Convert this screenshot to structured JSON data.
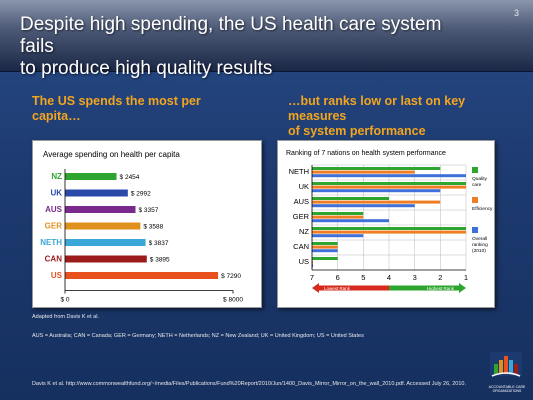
{
  "slide": {
    "title_line1": "Despite high spending, the US health care system fails",
    "title_line2": "to produce high quality results",
    "page_number": "3",
    "subtitle_left": "The US spends the most per capita…",
    "subtitle_right_line1": "…but ranks low or last on key measures",
    "subtitle_right_line2": "of system performance",
    "note": "Adapted from Davis K et al.",
    "abbreviations": "AUS = Australia; CAN = Canada; GER = Germany; NETH = Netherlands; NZ = New Zealand; UK = United Kingdom; US = United States",
    "source": "Davis K et al. http://www.commonwealthfund.org/~/media/Files/Publications/Fund%20Report/2010/Jun/1400_Davis_Mirror_Mirror_on_the_wall_2010.pdf. Accessed July 26, 2010.",
    "logo_text": "ACCOUNTABLE CARE ORGANIZATIONS",
    "header_colors": {
      "background": "#1d3a70",
      "accent": "#f3a51d"
    }
  },
  "chart_data": [
    {
      "type": "bar",
      "orientation": "horizontal",
      "title": "Average spending on health per capita",
      "categories": [
        "NZ",
        "UK",
        "AUS",
        "GER",
        "NETH",
        "CAN",
        "US"
      ],
      "values": [
        2454,
        2992,
        3357,
        3588,
        3837,
        3895,
        7290
      ],
      "value_labels": [
        "$ 2454",
        "$ 2992",
        "$ 3357",
        "$ 3588",
        "$ 3837",
        "$ 3895",
        "$ 7290"
      ],
      "colors": [
        "#2ea52e",
        "#2a49a8",
        "#7a2a8c",
        "#e0901c",
        "#3aa7d8",
        "#9c1c1c",
        "#e8511e"
      ],
      "xlim": [
        0,
        8000
      ],
      "xtick_labels": [
        "$ 0",
        "$ 8000"
      ],
      "grid": false
    },
    {
      "type": "bar",
      "orientation": "horizontal",
      "title": "Ranking of 7 nations on health system performance",
      "categories": [
        "NETH",
        "UK",
        "AUS",
        "GER",
        "NZ",
        "CAN",
        "US"
      ],
      "series": [
        {
          "name": "Quality care",
          "color": "#2ea52e",
          "values": [
            2,
            1,
            4,
            5,
            1,
            6,
            6
          ]
        },
        {
          "name": "Efficiency",
          "color": "#ef7d22",
          "values": [
            3,
            1,
            2,
            5,
            1,
            6,
            7
          ]
        },
        {
          "name": "Overall ranking (2010)",
          "color": "#3f6fd8",
          "values": [
            1,
            2,
            3,
            4,
            5,
            6,
            7
          ]
        }
      ],
      "xlim": [
        7,
        1
      ],
      "xtick_labels": [
        "7",
        "6",
        "5",
        "4",
        "3",
        "2",
        "1"
      ],
      "arrow_left_label": "Lowest Rank",
      "arrow_right_label": "Highest Rank",
      "legend_position": "right",
      "grid": true
    }
  ]
}
